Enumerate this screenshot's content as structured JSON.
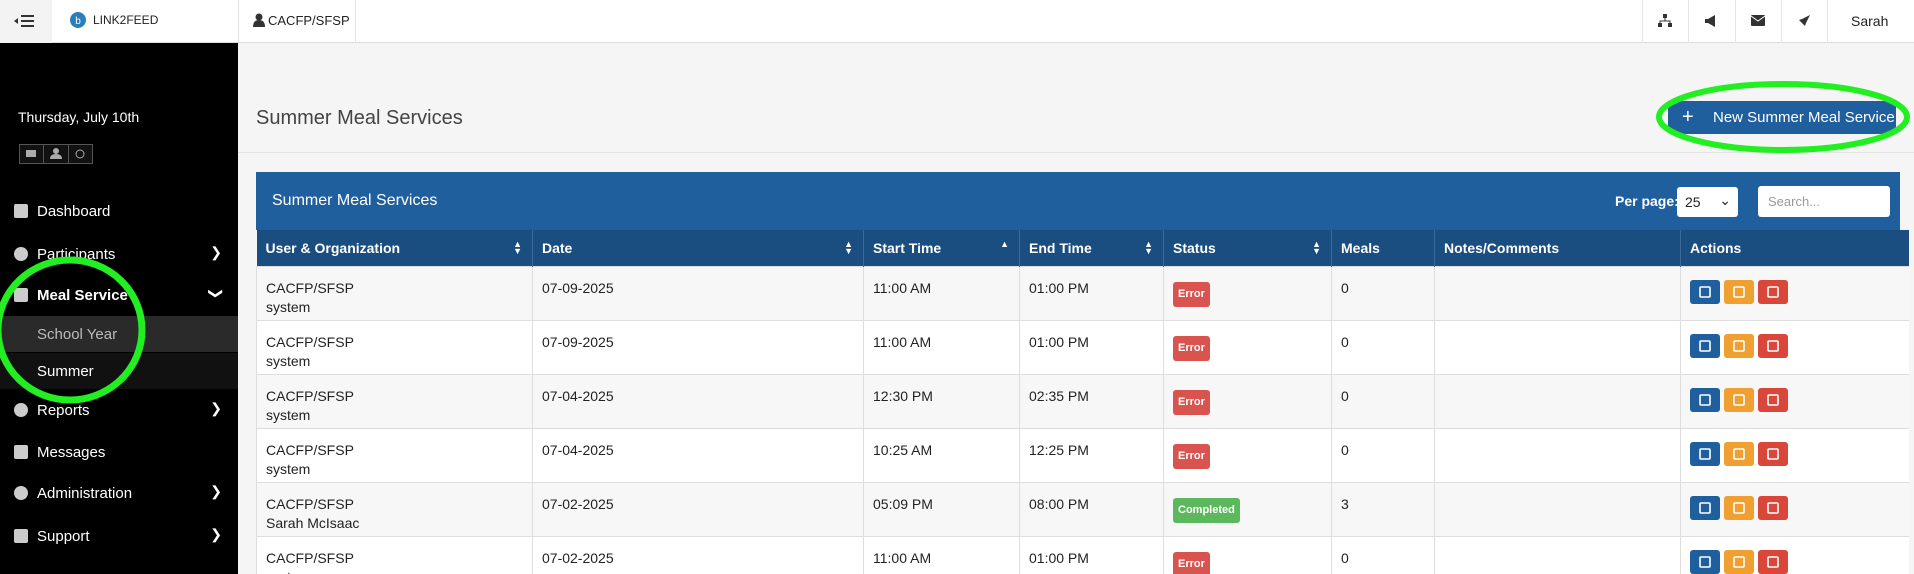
{
  "header": {
    "brand": "LINK2FEED",
    "organization": "CACFP/SFSP",
    "user": "Sarah"
  },
  "sidebar": {
    "date": "Thursday, July 10th",
    "nav": [
      "Dashboard",
      "Participants",
      "Meal Service",
      "School Year",
      "Summer",
      "Reports",
      "Messages",
      "Administration",
      "Support"
    ]
  },
  "page": {
    "title": "Summer Meal Services",
    "button": "New Summer Meal Service"
  },
  "table": {
    "title": "Summer Meal Services",
    "per_page_label": "Per page:",
    "per_page": "25",
    "search_placeholder": "Search...",
    "columns": [
      "User & Organization",
      "Date",
      "Start Time",
      "End Time",
      "Status",
      "Meals",
      "Notes/Comments",
      "Actions"
    ],
    "rows": [
      {
        "organization": "CACFP/SFSP",
        "user": "system",
        "date": "07-09-2025",
        "start": "11:00 AM",
        "end": "01:00 PM",
        "status": "Error",
        "status_color": "#d9534f",
        "meals": "0"
      },
      {
        "organization": "CACFP/SFSP",
        "user": "system",
        "date": "07-09-2025",
        "start": "11:00 AM",
        "end": "01:00 PM",
        "status": "Error",
        "status_color": "#d9534f",
        "meals": "0"
      },
      {
        "organization": "CACFP/SFSP",
        "user": "system",
        "date": "07-04-2025",
        "start": "12:30 PM",
        "end": "02:35 PM",
        "status": "Error",
        "status_color": "#d9534f",
        "meals": "0"
      },
      {
        "organization": "CACFP/SFSP",
        "user": "system",
        "date": "07-04-2025",
        "start": "10:25 AM",
        "end": "12:25 PM",
        "status": "Error",
        "status_color": "#d9534f",
        "meals": "0"
      },
      {
        "organization": "CACFP/SFSP",
        "user": "Sarah McIsaac",
        "date": "07-02-2025",
        "start": "05:09 PM",
        "end": "08:00 PM",
        "status": "Completed",
        "status_color": "#5cb85c",
        "meals": "3"
      },
      {
        "organization": "CACFP/SFSP",
        "user": "system",
        "date": "07-02-2025",
        "start": "11:00 AM",
        "end": "01:00 PM",
        "status": "Error",
        "status_color": "#d9534f",
        "meals": "0"
      }
    ]
  }
}
